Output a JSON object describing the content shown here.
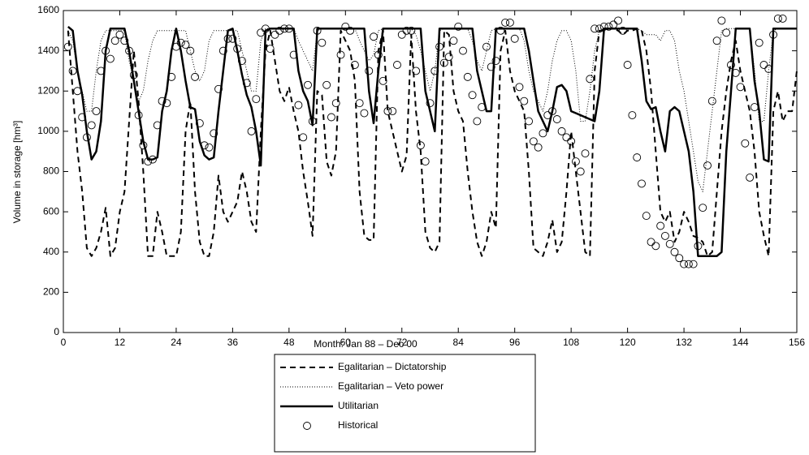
{
  "chart_data": {
    "type": "line",
    "xlabel": "Month: Jan 88 – Dec 00",
    "ylabel": "Volume in storage [hm³]",
    "xlim": [
      0,
      156
    ],
    "xticks": [
      0,
      12,
      24,
      36,
      48,
      60,
      72,
      84,
      96,
      108,
      120,
      132,
      144,
      156
    ],
    "ylim": [
      0,
      1600
    ],
    "yticks": [
      0,
      200,
      400,
      600,
      800,
      1000,
      1200,
      1400,
      1600
    ],
    "grid": false,
    "legend": "below",
    "x": [
      1,
      2,
      3,
      4,
      5,
      6,
      7,
      8,
      9,
      10,
      11,
      12,
      13,
      14,
      15,
      16,
      17,
      18,
      19,
      20,
      21,
      22,
      23,
      24,
      25,
      26,
      27,
      28,
      29,
      30,
      31,
      32,
      33,
      34,
      35,
      36,
      37,
      38,
      39,
      40,
      41,
      42,
      43,
      44,
      45,
      46,
      47,
      48,
      49,
      50,
      51,
      52,
      53,
      54,
      55,
      56,
      57,
      58,
      59,
      60,
      61,
      62,
      63,
      64,
      65,
      66,
      67,
      68,
      69,
      70,
      71,
      72,
      73,
      74,
      75,
      76,
      77,
      78,
      79,
      80,
      81,
      82,
      83,
      84,
      85,
      86,
      87,
      88,
      89,
      90,
      91,
      92,
      93,
      94,
      95,
      96,
      97,
      98,
      99,
      100,
      101,
      102,
      103,
      104,
      105,
      106,
      107,
      108,
      109,
      110,
      111,
      112,
      113,
      114,
      115,
      116,
      117,
      118,
      119,
      120,
      121,
      122,
      123,
      124,
      125,
      126,
      127,
      128,
      129,
      130,
      131,
      132,
      133,
      134,
      135,
      136,
      137,
      138,
      139,
      140,
      141,
      142,
      143,
      144,
      145,
      146,
      147,
      148,
      149,
      150,
      151,
      152,
      153,
      154,
      155,
      156
    ],
    "series": [
      {
        "name": "Egalitarian – Dictatorship",
        "color": "#000000",
        "style": "dashed",
        "values": [
          1500,
          1200,
          900,
          700,
          420,
          380,
          420,
          500,
          620,
          380,
          420,
          600,
          700,
          1050,
          1400,
          1150,
          800,
          380,
          380,
          600,
          500,
          380,
          380,
          380,
          500,
          1000,
          1150,
          700,
          450,
          380,
          380,
          500,
          780,
          600,
          550,
          600,
          650,
          800,
          700,
          550,
          500,
          1000,
          1400,
          1500,
          1350,
          1200,
          1150,
          1220,
          1100,
          1000,
          800,
          650,
          480,
          1200,
          1180,
          850,
          780,
          900,
          1500,
          1450,
          1400,
          1250,
          700,
          480,
          460,
          460,
          1400,
          1500,
          1100,
          1000,
          900,
          800,
          880,
          1480,
          1100,
          900,
          500,
          420,
          400,
          450,
          1500,
          1480,
          1200,
          1100,
          1050,
          800,
          600,
          450,
          380,
          450,
          600,
          520,
          1400,
          1500,
          1300,
          1200,
          1150,
          1100,
          800,
          420,
          400,
          380,
          450,
          560,
          400,
          450,
          700,
          1000,
          800,
          600,
          400,
          380,
          1300,
          1500,
          1500,
          1510,
          1510,
          1500,
          1480,
          1500,
          1500,
          1510,
          1500,
          1400,
          1200,
          900,
          600,
          550,
          600,
          450,
          500,
          600,
          550,
          480,
          470,
          450,
          380,
          400,
          700,
          1000,
          1200,
          1350,
          1450,
          1300,
          1200,
          1100,
          900,
          600,
          480,
          380,
          1100,
          1200,
          1050,
          1100,
          1100,
          1300
        ]
      },
      {
        "name": "Egalitarian – Veto power",
        "color": "#000000",
        "style": "dotted",
        "values": [
          1500,
          1450,
          1300,
          1200,
          1100,
          1100,
          1300,
          1450,
          1500,
          1500,
          1500,
          1500,
          1500,
          1350,
          1250,
          1150,
          1200,
          1350,
          1450,
          1500,
          1500,
          1500,
          1500,
          1500,
          1500,
          1500,
          1400,
          1300,
          1250,
          1300,
          1450,
          1500,
          1500,
          1500,
          1500,
          1500,
          1500,
          1400,
          1300,
          1200,
          1200,
          1450,
          1510,
          1510,
          1510,
          1510,
          1510,
          1510,
          1510,
          1450,
          1400,
          1350,
          1300,
          1500,
          1510,
          1510,
          1510,
          1510,
          1510,
          1510,
          1510,
          1510,
          1450,
          1400,
          1350,
          1380,
          1500,
          1510,
          1510,
          1510,
          1510,
          1510,
          1510,
          1510,
          1480,
          1400,
          1300,
          1200,
          1300,
          1500,
          1510,
          1510,
          1510,
          1510,
          1510,
          1510,
          1450,
          1350,
          1300,
          1400,
          1500,
          1510,
          1510,
          1510,
          1510,
          1510,
          1510,
          1450,
          1300,
          1200,
          1150,
          1100,
          1200,
          1350,
          1450,
          1500,
          1500,
          1450,
          1300,
          1050,
          1050,
          1200,
          1400,
          1500,
          1510,
          1510,
          1510,
          1510,
          1510,
          1510,
          1510,
          1510,
          1500,
          1480,
          1480,
          1480,
          1450,
          1500,
          1500,
          1450,
          1300,
          1200,
          1050,
          900,
          750,
          700,
          900,
          1100,
          1300,
          1500,
          1510,
          1510,
          1510,
          1510,
          1510,
          1510,
          1300,
          1050,
          1050,
          1300,
          1500,
          1510,
          1510,
          1510,
          1510,
          1510
        ]
      },
      {
        "name": "Utilitarian",
        "color": "#000000",
        "style": "solid",
        "values": [
          1520,
          1500,
          1300,
          1180,
          1000,
          860,
          900,
          1050,
          1400,
          1510,
          1510,
          1510,
          1510,
          1400,
          1250,
          1100,
          950,
          860,
          860,
          870,
          1100,
          1200,
          1400,
          1510,
          1400,
          1250,
          1120,
          1110,
          950,
          880,
          860,
          870,
          1100,
          1300,
          1500,
          1510,
          1400,
          1280,
          1180,
          1120,
          1000,
          830,
          1500,
          1510,
          1510,
          1510,
          1510,
          1510,
          1510,
          1300,
          1200,
          1150,
          1030,
          1510,
          1510,
          1510,
          1510,
          1510,
          1510,
          1510,
          1510,
          1510,
          1510,
          1510,
          1200,
          1040,
          1300,
          1510,
          1510,
          1510,
          1510,
          1510,
          1510,
          1510,
          1510,
          1510,
          1200,
          1100,
          1000,
          1510,
          1510,
          1510,
          1510,
          1510,
          1510,
          1510,
          1510,
          1300,
          1200,
          1100,
          1100,
          1510,
          1510,
          1510,
          1510,
          1510,
          1510,
          1510,
          1400,
          1250,
          1100,
          1050,
          1000,
          1100,
          1220,
          1230,
          1200,
          1100,
          1090,
          1080,
          1070,
          1060,
          1050,
          1200,
          1510,
          1510,
          1510,
          1510,
          1510,
          1510,
          1510,
          1510,
          1350,
          1150,
          1110,
          1120,
          1000,
          900,
          1100,
          1120,
          1100,
          1000,
          900,
          700,
          380,
          380,
          380,
          380,
          380,
          400,
          900,
          1200,
          1510,
          1510,
          1510,
          1510,
          1250,
          1100,
          860,
          850,
          1510,
          1510,
          1510,
          1510,
          1510,
          1510
        ]
      },
      {
        "name": "Historical",
        "color": "#000000",
        "style": "marker",
        "values": [
          1420,
          1300,
          1200,
          1070,
          970,
          1030,
          1100,
          1300,
          1400,
          1360,
          1450,
          1480,
          1450,
          1400,
          1280,
          1080,
          930,
          850,
          860,
          1030,
          1150,
          1140,
          1270,
          1420,
          1440,
          1430,
          1400,
          1270,
          1040,
          930,
          920,
          990,
          1210,
          1400,
          1460,
          1460,
          1410,
          1350,
          1240,
          1000,
          1160,
          1490,
          1510,
          1410,
          1480,
          1500,
          1510,
          1510,
          1380,
          1130,
          970,
          1230,
          1050,
          1500,
          1440,
          1230,
          1070,
          1140,
          1380,
          1520,
          1500,
          1330,
          1140,
          1090,
          1300,
          1470,
          1380,
          1250,
          1100,
          1100,
          1330,
          1480,
          1500,
          1500,
          1300,
          930,
          850,
          1140,
          1300,
          1420,
          1340,
          1370,
          1450,
          1520,
          1400,
          1270,
          1180,
          1050,
          1120,
          1420,
          1320,
          1350,
          1500,
          1540,
          1540,
          1460,
          1220,
          1150,
          1050,
          950,
          920,
          990,
          1080,
          1100,
          1060,
          1000,
          970,
          950,
          850,
          800,
          890,
          1260,
          1510,
          1510,
          1520,
          1520,
          1530,
          1550,
          1500,
          1330,
          1080,
          870,
          740,
          580,
          450,
          430,
          530,
          480,
          440,
          400,
          370,
          340,
          340,
          340,
          430,
          620,
          830,
          1150,
          1450,
          1550,
          1490,
          1330,
          1290,
          1220,
          940,
          770,
          1120,
          1440,
          1330,
          1310,
          1480,
          1560,
          1560,
          null,
          null,
          null
        ]
      }
    ]
  }
}
